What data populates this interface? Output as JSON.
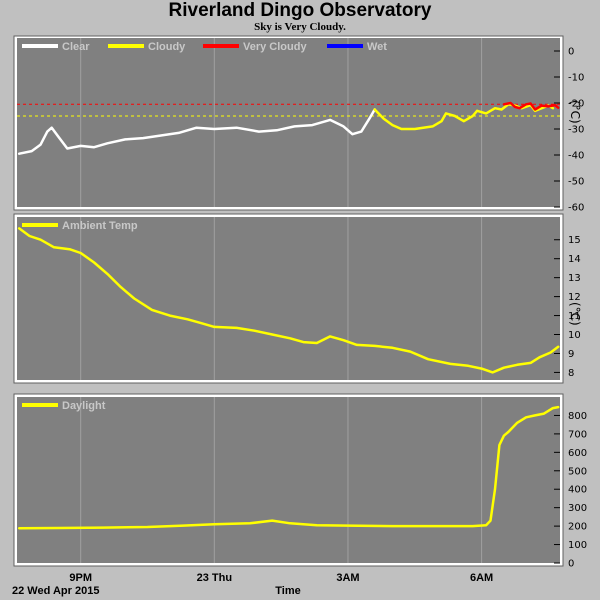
{
  "header": {
    "title": "Riverland Dingo Observatory",
    "subtitle": "Sky is Very Cloudy."
  },
  "colors": {
    "background": "#c0c0c0",
    "panel": "#808080",
    "gridline": "#a0a0a0",
    "clear": "#ffffff",
    "cloudy": "#ffff00",
    "very_cloudy": "#ff0000",
    "wet": "#0000ff",
    "threshold_red": "#ff0000",
    "threshold_yellow": "#ffff00"
  },
  "x_axis": {
    "label": "Time",
    "date_label": "22 Wed Apr 2015",
    "tick_labels": [
      "9PM",
      "23 Thu",
      "3AM",
      "6AM"
    ],
    "tick_hours": [
      21,
      24,
      27,
      30
    ],
    "range_hours": [
      19.57,
      31.76
    ]
  },
  "chart_data": [
    {
      "type": "line",
      "panel": "sky",
      "unit_label": "(°C)",
      "ylim": [
        -60,
        5
      ],
      "yticks": [
        0,
        -10,
        -20,
        -30,
        -40,
        -50,
        -60
      ],
      "thresholds": [
        {
          "value": -20.5,
          "color": "red",
          "style": "dashed"
        },
        {
          "value": -25,
          "color": "yellow",
          "style": "dashed"
        }
      ],
      "legend": [
        {
          "name": "Clear",
          "color": "#ffffff"
        },
        {
          "name": "Cloudy",
          "color": "#ffff00"
        },
        {
          "name": "Very Cloudy",
          "color": "#ff0000"
        },
        {
          "name": "Wet",
          "color": "#0000ff"
        }
      ],
      "series": [
        {
          "name": "Clear",
          "color": "#ffffff",
          "points": [
            [
              19.62,
              -39.5
            ],
            [
              19.9,
              -38.5
            ],
            [
              20.1,
              -36
            ],
            [
              20.25,
              -31
            ],
            [
              20.35,
              -29.5
            ],
            [
              20.5,
              -33
            ],
            [
              20.7,
              -37.5
            ],
            [
              21.0,
              -36.5
            ],
            [
              21.3,
              -37
            ],
            [
              21.6,
              -35.5
            ],
            [
              22.0,
              -34
            ],
            [
              22.4,
              -33.5
            ],
            [
              22.8,
              -32.5
            ],
            [
              23.2,
              -31.5
            ],
            [
              23.6,
              -29.5
            ],
            [
              24.0,
              -30
            ],
            [
              24.5,
              -29.5
            ],
            [
              25.0,
              -31
            ],
            [
              25.4,
              -30.5
            ],
            [
              25.8,
              -29
            ],
            [
              26.2,
              -28.5
            ],
            [
              26.6,
              -26.5
            ],
            [
              26.9,
              -29
            ],
            [
              27.1,
              -32
            ],
            [
              27.3,
              -31
            ],
            [
              27.5,
              -25.5
            ],
            [
              27.6,
              -22.5
            ]
          ]
        },
        {
          "name": "Cloudy",
          "color": "#ffff00",
          "points": [
            [
              27.6,
              -22.5
            ],
            [
              27.8,
              -26
            ],
            [
              28.0,
              -28.5
            ],
            [
              28.2,
              -30
            ],
            [
              28.5,
              -30
            ],
            [
              28.9,
              -29
            ],
            [
              29.1,
              -27
            ],
            [
              29.2,
              -24
            ],
            [
              29.4,
              -25
            ],
            [
              29.6,
              -27
            ],
            [
              29.8,
              -25
            ],
            [
              29.9,
              -23
            ],
            [
              30.1,
              -24
            ],
            [
              30.3,
              -22
            ],
            [
              30.45,
              -22.5
            ],
            [
              30.6,
              -20.5
            ],
            [
              30.75,
              -21
            ],
            [
              30.9,
              -22
            ],
            [
              31.1,
              -20.8
            ],
            [
              31.2,
              -23
            ],
            [
              31.35,
              -22
            ],
            [
              31.5,
              -21
            ],
            [
              31.6,
              -22
            ]
          ]
        },
        {
          "name": "Very Cloudy",
          "color": "#ff0000",
          "points": [
            [
              30.5,
              -20.5
            ],
            [
              30.65,
              -20
            ],
            [
              30.75,
              -21.5
            ],
            [
              30.85,
              -22
            ],
            [
              31.0,
              -20.5
            ],
            [
              31.1,
              -20.2
            ],
            [
              31.2,
              -22.5
            ],
            [
              31.35,
              -21
            ],
            [
              31.5,
              -21.3
            ],
            [
              31.65,
              -20.8
            ],
            [
              31.72,
              -21.8
            ]
          ]
        }
      ]
    },
    {
      "type": "line",
      "panel": "ambient",
      "unit_label": "(°C)",
      "ylim": [
        7.6,
        16.2
      ],
      "yticks": [
        15,
        14,
        13,
        12,
        11,
        10,
        9,
        8
      ],
      "legend": [
        {
          "name": "Ambient Temp",
          "color": "#ffff00"
        }
      ],
      "series": [
        {
          "name": "Ambient Temp",
          "color": "#ffff00",
          "points": [
            [
              19.62,
              15.6
            ],
            [
              19.85,
              15.2
            ],
            [
              20.1,
              15
            ],
            [
              20.4,
              14.6
            ],
            [
              20.75,
              14.5
            ],
            [
              21.0,
              14.3
            ],
            [
              21.3,
              13.8
            ],
            [
              21.6,
              13.2
            ],
            [
              21.9,
              12.5
            ],
            [
              22.2,
              11.9
            ],
            [
              22.6,
              11.3
            ],
            [
              23.0,
              11
            ],
            [
              23.4,
              10.8
            ],
            [
              23.7,
              10.6
            ],
            [
              24.0,
              10.4
            ],
            [
              24.5,
              10.35
            ],
            [
              24.9,
              10.2
            ],
            [
              25.3,
              10
            ],
            [
              25.7,
              9.8
            ],
            [
              26.0,
              9.6
            ],
            [
              26.3,
              9.55
            ],
            [
              26.6,
              9.9
            ],
            [
              26.9,
              9.7
            ],
            [
              27.2,
              9.45
            ],
            [
              27.6,
              9.4
            ],
            [
              28.0,
              9.3
            ],
            [
              28.4,
              9.1
            ],
            [
              28.8,
              8.7
            ],
            [
              29.3,
              8.45
            ],
            [
              29.7,
              8.35
            ],
            [
              30.0,
              8.2
            ],
            [
              30.25,
              8
            ],
            [
              30.5,
              8.25
            ],
            [
              30.8,
              8.4
            ],
            [
              31.1,
              8.5
            ],
            [
              31.3,
              8.8
            ],
            [
              31.55,
              9.05
            ],
            [
              31.72,
              9.35
            ]
          ]
        }
      ]
    },
    {
      "type": "line",
      "panel": "daylight",
      "ylim": [
        0,
        900
      ],
      "yticks": [
        800,
        700,
        600,
        500,
        400,
        300,
        200,
        100,
        0
      ],
      "legend": [
        {
          "name": "Daylight",
          "color": "#ffff00"
        }
      ],
      "series": [
        {
          "name": "Daylight",
          "color": "#ffff00",
          "points": [
            [
              19.62,
              188
            ],
            [
              20.5,
              190
            ],
            [
              21.5,
              192
            ],
            [
              22.5,
              195
            ],
            [
              23.3,
              203
            ],
            [
              24.0,
              210
            ],
            [
              24.8,
              215
            ],
            [
              25.3,
              230
            ],
            [
              25.7,
              215
            ],
            [
              26.3,
              205
            ],
            [
              27.0,
              203
            ],
            [
              28.0,
              200
            ],
            [
              29.0,
              200
            ],
            [
              29.8,
              200
            ],
            [
              30.1,
              205
            ],
            [
              30.2,
              230
            ],
            [
              30.3,
              400
            ],
            [
              30.4,
              640
            ],
            [
              30.5,
              690
            ],
            [
              30.6,
              710
            ],
            [
              30.8,
              760
            ],
            [
              31.0,
              790
            ],
            [
              31.2,
              800
            ],
            [
              31.4,
              810
            ],
            [
              31.6,
              840
            ],
            [
              31.72,
              845
            ]
          ]
        }
      ]
    }
  ]
}
